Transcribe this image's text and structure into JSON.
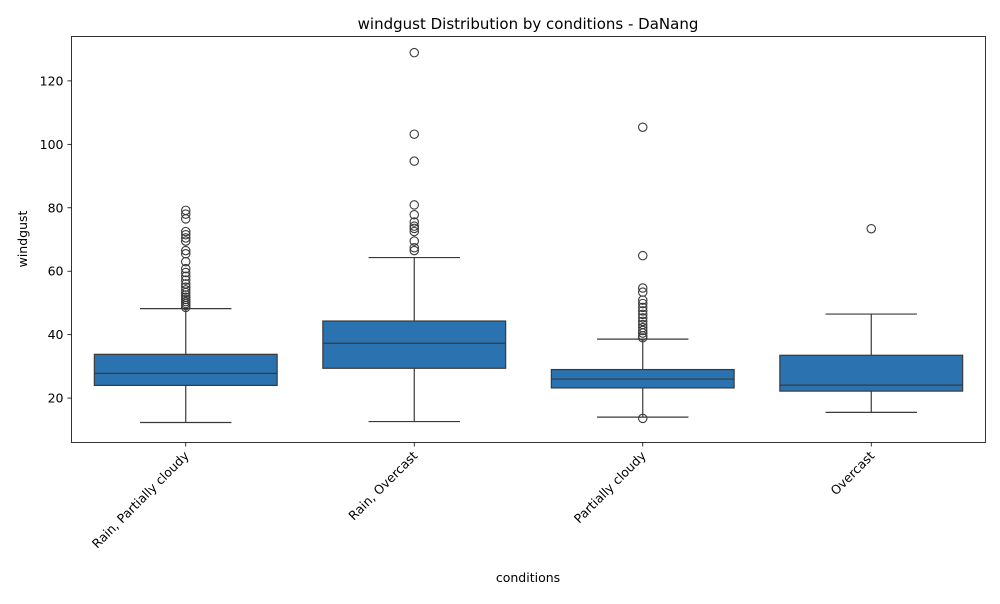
{
  "chart_data": {
    "type": "box",
    "title": "windgust Distribution by conditions - DaNang",
    "xlabel": "conditions",
    "ylabel": "windgust",
    "categories": [
      "Rain, Partially cloudy",
      "Rain, Overcast",
      "Partially cloudy",
      "Overcast"
    ],
    "ylim": [
      6,
      134
    ],
    "yticks": [
      20,
      40,
      60,
      80,
      100,
      120
    ],
    "grid": false,
    "box_color": "#2a72b0",
    "boxes": [
      {
        "category": "Rain, Partially cloudy",
        "whisker_low": 12.3,
        "q1": 24.0,
        "median": 27.8,
        "q3": 33.8,
        "whisker_high": 48.2,
        "outliers": [
          48.6,
          49.2,
          49.8,
          50.4,
          51.1,
          51.8,
          52.5,
          53.3,
          54.1,
          55.0,
          56.0,
          57.2,
          58.4,
          59.6,
          60.8,
          63.0,
          65.5,
          66.5,
          69.5,
          70.5,
          71.5,
          72.5,
          76.5,
          78.0,
          79.2
        ]
      },
      {
        "category": "Rain, Overcast",
        "whisker_low": 12.6,
        "q1": 29.4,
        "median": 37.3,
        "q3": 44.3,
        "whisker_high": 64.3,
        "outliers": [
          66.5,
          67.4,
          69.5,
          72.5,
          73.5,
          74.2,
          75.5,
          77.8,
          80.9,
          94.7,
          103.2,
          128.9
        ]
      },
      {
        "category": "Partially cloudy",
        "whisker_low": 14.0,
        "q1": 23.2,
        "median": 26.0,
        "q3": 29.0,
        "whisker_high": 38.6,
        "outliers": [
          13.6,
          39.0,
          39.6,
          40.5,
          41.3,
          42.2,
          43.2,
          44.2,
          45.3,
          46.4,
          47.5,
          48.6,
          49.8,
          50.9,
          53.4,
          54.7,
          64.9,
          105.4
        ]
      },
      {
        "category": "Overcast",
        "whisker_low": 15.5,
        "q1": 22.2,
        "median": 24.1,
        "q3": 33.5,
        "whisker_high": 46.5,
        "outliers": [
          73.4
        ]
      }
    ]
  }
}
